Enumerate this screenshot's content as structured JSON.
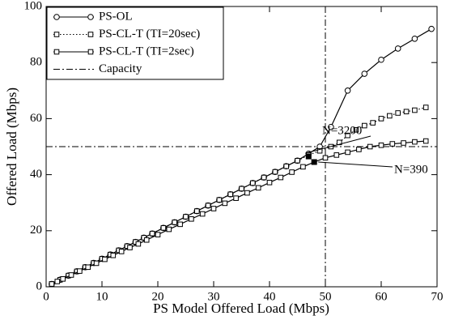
{
  "chart_data": {
    "type": "line",
    "xlabel": "PS Model Offered Load (Mbps)",
    "ylabel": "Offered Load (Mbps)",
    "xlim": [
      0,
      70
    ],
    "xticks": [
      0,
      10,
      20,
      30,
      40,
      50,
      60,
      70
    ],
    "ylim": [
      0,
      100
    ],
    "yticks": [
      0,
      20,
      40,
      60,
      80,
      100
    ],
    "legend": "upper left",
    "series": [
      {
        "name": "PS-OL",
        "color": "#000000",
        "marker": "circle",
        "dash": "solid",
        "x": [
          1,
          2.5,
          4,
          5.5,
          7,
          8.5,
          10,
          11.5,
          13,
          14.5,
          16,
          17.5,
          19,
          21,
          23,
          25,
          27,
          29,
          31,
          33,
          35,
          37,
          39,
          41,
          43,
          45,
          47,
          49,
          51,
          54,
          57,
          60,
          63,
          66,
          69
        ],
        "values": [
          1,
          2.5,
          4,
          5.5,
          7,
          8.5,
          10,
          11.5,
          13,
          14.5,
          16,
          17.5,
          19,
          21,
          23,
          25,
          27,
          29,
          31,
          33,
          35,
          37,
          39,
          41,
          43,
          45,
          47.5,
          50,
          57,
          70,
          76,
          81,
          85,
          88.5,
          92
        ]
      },
      {
        "name": "PS-CL-T (TI=20sec)",
        "color": "#000000",
        "marker": "square",
        "dash": "dotted",
        "x": [
          1,
          2.5,
          4,
          5.5,
          7,
          8.5,
          10,
          11.5,
          13,
          14.5,
          16,
          17.5,
          19,
          21,
          23,
          25,
          27,
          29,
          31,
          33,
          35,
          37,
          39,
          41,
          43,
          45,
          47,
          49,
          51,
          52.5,
          54,
          55.5,
          57,
          58.5,
          60,
          61.5,
          63,
          64.5,
          66,
          68
        ],
        "values": [
          1,
          2.5,
          4,
          5.5,
          7,
          8.5,
          10,
          11.5,
          13,
          14.5,
          16,
          17.5,
          19,
          21,
          23,
          25,
          27,
          29,
          31,
          33,
          35,
          37,
          39,
          41,
          43,
          45,
          47,
          48.5,
          50,
          51.5,
          54,
          56,
          57.5,
          58.5,
          60,
          61,
          62,
          62.5,
          63,
          64
        ]
      },
      {
        "name": "PS-CL-T (TI=2sec)",
        "color": "#000000",
        "marker": "square",
        "dash": "solid",
        "x": [
          1,
          2,
          3,
          4.5,
          6,
          7.5,
          9,
          10.5,
          12,
          13.5,
          15,
          16.5,
          18,
          20,
          22,
          24,
          26,
          28,
          30,
          32,
          34,
          36,
          38,
          40,
          42,
          44,
          46,
          48,
          50,
          52,
          54,
          56,
          58,
          60,
          62,
          64,
          66,
          68
        ],
        "values": [
          1,
          1.9,
          2.8,
          4.2,
          5.6,
          7,
          8.4,
          9.8,
          11.2,
          12.6,
          14,
          15.3,
          16.7,
          18.6,
          20.5,
          22.3,
          24.2,
          26,
          27.9,
          29.8,
          31.6,
          33.5,
          35.3,
          37.2,
          39,
          40.9,
          42.8,
          44.5,
          46,
          47,
          48,
          49,
          50,
          50.5,
          51,
          51.3,
          51.7,
          52
        ]
      }
    ],
    "capacity": {
      "name": "Capacity",
      "x": 50,
      "y": 50
    },
    "annotations": [
      {
        "text": "N=3200",
        "x": 47,
        "y": 46.5
      },
      {
        "text": "N=390",
        "x": 48,
        "y": 44.5
      }
    ]
  }
}
